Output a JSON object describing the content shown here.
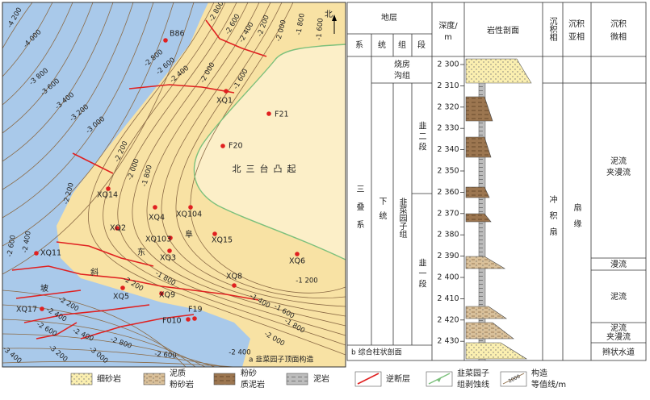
{
  "map": {
    "north": "北",
    "caption": "a 韭菜园子顶面构造",
    "regions": [
      "北三台凸起",
      "阜",
      "东",
      "斜",
      "坡"
    ],
    "wells": [
      "B86",
      "XQ1",
      "F21",
      "F20",
      "XQ14",
      "XQ4",
      "XQ104",
      "XQ2",
      "XQ103",
      "XQ3",
      "XQ15",
      "XQ6",
      "XQ11",
      "XQ8",
      "XQ5",
      "XQ9",
      "XQ17",
      "F19",
      "F010"
    ],
    "contour_labels": [
      "-4 200",
      "-4 000",
      "-3 800",
      "-3 600",
      "-3 400",
      "-3 200",
      "-3 000",
      "-2 800",
      "-2 600",
      "-2 400",
      "-2 800",
      "-2 600",
      "-2 400",
      "-2 200",
      "-2 000",
      "-1 800",
      "-1 600",
      "-2 000",
      "-1 600",
      "-2 200",
      "-2 000",
      "-1 800",
      "-2 200",
      "-2 600",
      "-2 400",
      "-2 200",
      "-2 400",
      "-2 600",
      "-2 400",
      "-3 400",
      "-3 200",
      "-3 000",
      "-2 800",
      "-2 600",
      "-2 400",
      "-2 200",
      "-1 800",
      "-1 400",
      "-1 600",
      "-1 200",
      "-1 800",
      "-2 000"
    ]
  },
  "column": {
    "headers": {
      "strata": "地层",
      "system": "系",
      "series": "统",
      "formation": "组",
      "member": "段",
      "depth": [
        "深度/",
        "m"
      ],
      "lithology": "岩性剖面",
      "facies": "沉积相",
      "subfacies": [
        "沉积",
        "亚相"
      ],
      "microfacies": [
        "沉积",
        "微相"
      ]
    },
    "system": "三叠系",
    "series": "下统",
    "formations": [
      [
        "烧房",
        "沟组"
      ],
      "韭菜园子组"
    ],
    "members": [
      "韭二段",
      "韭一段"
    ],
    "facies": "冲积扇",
    "subfacies": "扇缘",
    "microfacies": [
      [
        "泥流",
        "夹漫流"
      ],
      [
        "漫流"
      ],
      [
        "泥流"
      ],
      [
        "泥流",
        "夹漫流"
      ],
      [
        "辫状水道"
      ]
    ],
    "depths": [
      "2 300",
      "2 310",
      "2 320",
      "2 330",
      "2 340",
      "2 350",
      "2 360",
      "2 370",
      "2 380",
      "2 390",
      "2 400",
      "2 410",
      "2 420",
      "2 430"
    ],
    "caption": "b 综合柱状剖面"
  },
  "legend": [
    [
      "细砂岩"
    ],
    [
      "泥质",
      "粉砂岩"
    ],
    [
      "粉砂",
      "质泥岩"
    ],
    [
      "泥岩"
    ],
    [
      "逆断层"
    ],
    [
      "韭菜园子",
      "组剥蚀线"
    ],
    [
      "构造",
      "等值线/m"
    ]
  ],
  "legend_sample": "2000"
}
